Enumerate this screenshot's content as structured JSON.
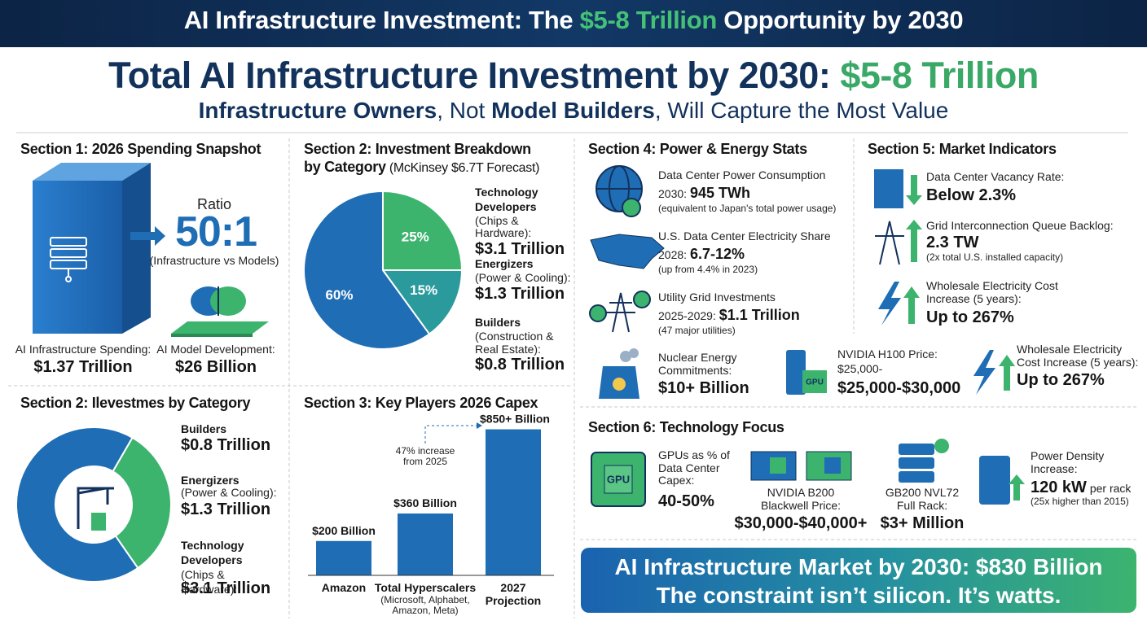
{
  "header": {
    "title": [
      "AI Infrastructure Investment: The ",
      "$5-8 Trillion",
      " Opportunity by 2030"
    ]
  },
  "headline": {
    "title": [
      "Total AI Infrastructure Investment by 2030: ",
      "$5-8 Trillion"
    ],
    "subtitle": [
      "Infrastructure Owners",
      ", Not ",
      "Model Builders",
      ", Will Capture the Most Value"
    ]
  },
  "section1": {
    "title": "Section 1: 2026 Spending Snapshot",
    "ratio_label": "Ratio",
    "ratio": "50:1",
    "ratio_note": "(Infrastructure vs Models)",
    "left_label": "AI Infrastructure Spending:",
    "left_value": "$1.37 Trillion",
    "right_label": "AI Model Development:",
    "right_value": "$26 Billion"
  },
  "section2": {
    "title": "Section 2: Investment Breakdown",
    "title2": "by Category",
    "title_note": " (McKinsey $6.7T Forecast)",
    "items": [
      {
        "name": "Technology Developers",
        "detail": "(Chips & Hardware):",
        "amount": "$3.1 Trillion"
      },
      {
        "name": "Energizers",
        "detail": "(Power & Cooling):",
        "amount": "$1.3 Trillion"
      },
      {
        "name": "Builders",
        "detail": "(Construction & Real Estate):",
        "amount": "$0.8 Trillion"
      }
    ]
  },
  "section2b": {
    "title": "Section 2: Ilevestmes by Category",
    "items": [
      {
        "name": "Builders",
        "amount": "$0.8 Trillion"
      },
      {
        "name": "Energizers",
        "detail": "(Power & Cooling):",
        "amount": "$1.3 Trillion"
      },
      {
        "name": "Technology Developers",
        "detail": " (Chips & Hardware):",
        "amount": "$3.1 Trillion"
      }
    ]
  },
  "section3": {
    "title": "Section 3: Key Players 2026 Capex",
    "annotation": "47% increase from 2025",
    "category_note": "(Microsoft, Alphabet, Amazon, Meta)"
  },
  "section4": {
    "title": "Section 4: Power & Energy Stats",
    "items": [
      {
        "label": "Data Center Power Consumption",
        "prefix": "2030: ",
        "value": "945 TWh",
        "note": "(equivalent to Japan's total power usage)"
      },
      {
        "label": "U.S. Data Center Electricity Share",
        "prefix": "2028: ",
        "value": "6.7-12%",
        "note": "(up from 4.4% in 2023)"
      },
      {
        "label": "Utility Grid Investments",
        "prefix": "2025-2029: ",
        "value": "$1.1 Trillion",
        "note": "(47 major utilities)"
      },
      {
        "label": "Nuclear Energy Commitments:",
        "value": "$10+ Billion"
      }
    ]
  },
  "section5": {
    "title": "Section 5: Market Indicators",
    "items": [
      {
        "label": "Data Center Vacancy Rate:",
        "value": "Below 2.3%"
      },
      {
        "label": "Grid Interconnection Queue Backlog:",
        "value": "2.3 TW",
        "note": "(2x total U.S. installed capacity)"
      },
      {
        "label": "Wholesale Electricity Cost Increase (5 years):",
        "value": "Up to 267%"
      }
    ]
  },
  "extras": {
    "h100": {
      "label": "NVIDIA H100 Price:",
      "line2": "$25,000-",
      "value": "$25,000-$30,000"
    },
    "wholesale": {
      "label": "Wholesale Electricity Cost Increase (5 years):",
      "value": "Up to 267%"
    }
  },
  "section6": {
    "title": "Section 6: Technology Focus",
    "items": [
      {
        "label": "GPUs as % of Data Center Capex:",
        "value": "40-50%"
      },
      {
        "label": "NVIDIA B200 Blackwell Price:",
        "value": "$30,000-$40,000+"
      },
      {
        "label": "GB200 NVL72 Full Rack:",
        "value": "$3+ Million"
      },
      {
        "label": "Power Density Increase:",
        "value": "120 kW",
        "suffix": " per rack",
        "note": "(25x higher than 2015)"
      }
    ]
  },
  "icon_label": "GPU",
  "banner": {
    "line1": "AI Infrastructure Market by 2030: $830 Billion",
    "line2": "The constraint isn’t silicon. It’s watts."
  },
  "chart_data": [
    {
      "type": "pie",
      "values": [
        25,
        15,
        60
      ],
      "value_labels": [
        "25%",
        "15%",
        "60%"
      ],
      "colors": [
        "#3cb46e",
        "#2a9a9c",
        "#1f6db5"
      ]
    },
    {
      "type": "donut",
      "values": [
        32,
        68
      ],
      "colors": [
        "#3cb46e",
        "#1f6db5"
      ]
    },
    {
      "type": "bar",
      "categories": [
        "Amazon",
        "Total Hyperscalers",
        "2027 Projection"
      ],
      "values": [
        200,
        360,
        850
      ],
      "value_labels": [
        "$200 Billion",
        "$360 Billion",
        "$850+ Billion"
      ],
      "color": "#1f6db5",
      "ylim": [
        0,
        900
      ]
    }
  ]
}
